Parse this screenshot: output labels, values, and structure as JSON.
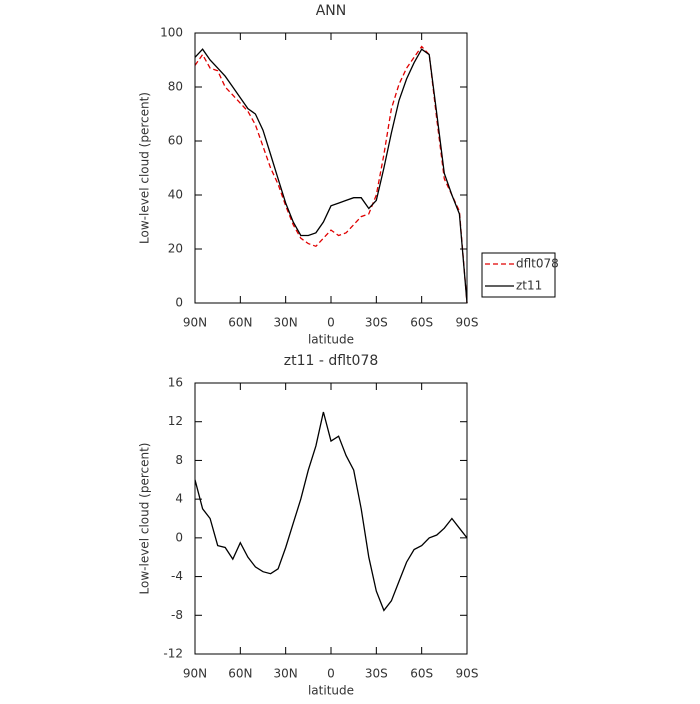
{
  "chart_data": [
    {
      "type": "line",
      "title": "ANN",
      "xlabel": "latitude",
      "ylabel": "Low-level cloud (percent)",
      "x": [
        90,
        85,
        80,
        75,
        70,
        65,
        60,
        55,
        50,
        45,
        40,
        35,
        30,
        25,
        20,
        15,
        10,
        5,
        0,
        -5,
        -10,
        -15,
        -20,
        -25,
        -30,
        -35,
        -40,
        -45,
        -50,
        -55,
        -60,
        -65,
        -70,
        -75,
        -80,
        -85,
        -90
      ],
      "xlim": [
        90,
        -90
      ],
      "xticks": [
        {
          "value": 90,
          "label": "90N"
        },
        {
          "value": 60,
          "label": "60N"
        },
        {
          "value": 30,
          "label": "30N"
        },
        0,
        {
          "value": -30,
          "label": "30S"
        },
        {
          "value": -60,
          "label": "60S"
        },
        {
          "value": -90,
          "label": "90S"
        }
      ],
      "ylim": [
        0,
        100
      ],
      "yticks": [
        0,
        20,
        40,
        60,
        80,
        100
      ],
      "legend": "right",
      "series": [
        {
          "name": "dflt078",
          "color": "#e00000",
          "linestyle": "dashed",
          "values": [
            88,
            92,
            87,
            86,
            80,
            77,
            74,
            71,
            66,
            58,
            50,
            44,
            36,
            29,
            24,
            22,
            21,
            24,
            27,
            25,
            26,
            29,
            32,
            33,
            40,
            55,
            72,
            81,
            87,
            91,
            95,
            92,
            68,
            46,
            40,
            34,
            0
          ]
        },
        {
          "name": "zt11",
          "color": "#000000",
          "linestyle": "solid",
          "values": [
            91,
            94,
            90,
            87,
            84,
            80,
            76,
            72,
            70,
            64,
            55,
            46,
            37,
            30,
            25,
            25,
            26,
            30,
            36,
            37,
            38,
            39,
            39,
            35,
            38,
            50,
            63,
            75,
            83,
            89,
            94,
            92,
            70,
            48,
            40,
            33,
            0
          ]
        }
      ]
    },
    {
      "type": "line",
      "title": "zt11 - dflt078",
      "xlabel": "latitude",
      "ylabel": "Low-level cloud (percent)",
      "x": [
        90,
        85,
        80,
        75,
        70,
        65,
        60,
        55,
        50,
        45,
        40,
        35,
        30,
        25,
        20,
        15,
        10,
        5,
        0,
        -5,
        -10,
        -15,
        -20,
        -25,
        -30,
        -35,
        -40,
        -45,
        -50,
        -55,
        -60,
        -65,
        -70,
        -75,
        -80,
        -85,
        -90
      ],
      "xlim": [
        90,
        -90
      ],
      "xticks": [
        {
          "value": 90,
          "label": "90N"
        },
        {
          "value": 60,
          "label": "60N"
        },
        {
          "value": 30,
          "label": "30N"
        },
        0,
        {
          "value": -30,
          "label": "30S"
        },
        {
          "value": -60,
          "label": "60S"
        },
        {
          "value": -90,
          "label": "90S"
        }
      ],
      "ylim": [
        -12,
        16
      ],
      "yticks": [
        -12,
        -8,
        -4,
        0,
        4,
        8,
        12,
        16
      ],
      "series": [
        {
          "color": "#000000",
          "linestyle": "solid",
          "values": [
            6,
            3,
            2,
            -0.8,
            -1,
            -2.2,
            -0.5,
            -2,
            -3,
            -3.5,
            -3.7,
            -3.2,
            -1,
            1.5,
            4,
            7,
            9.5,
            13,
            10,
            10.5,
            8.5,
            7,
            3,
            -2,
            -5.5,
            -7.5,
            -6.5,
            -4.5,
            -2.5,
            -1.2,
            -0.8,
            0,
            0.3,
            1,
            2,
            1,
            0
          ]
        }
      ]
    }
  ]
}
